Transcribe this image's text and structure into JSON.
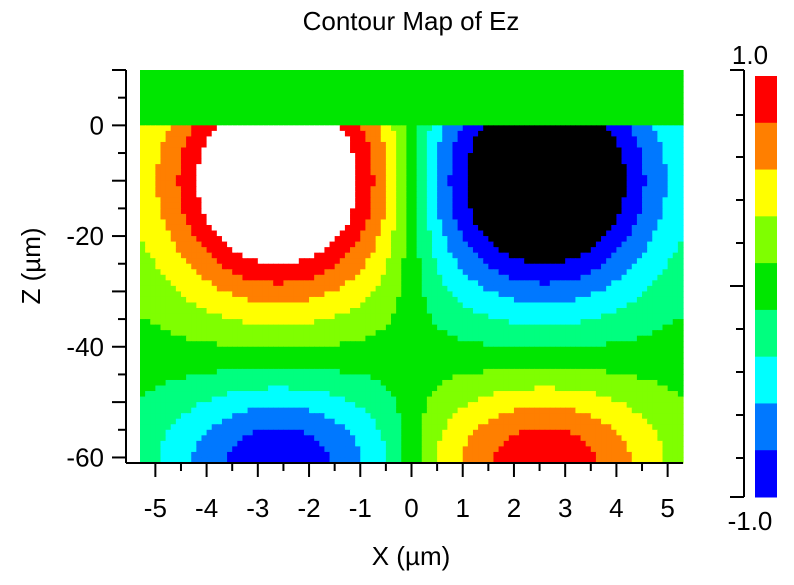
{
  "chart_data": {
    "type": "heatmap",
    "title": "Contour Map of Ez",
    "xlabel": "X (µm)",
    "ylabel": "Z (µm)",
    "xlim": [
      -5.3,
      5.3
    ],
    "ylim": [
      -61,
      10
    ],
    "x_ticks": [
      -5,
      -4,
      -3,
      -2,
      -1,
      0,
      1,
      2,
      3,
      4,
      5
    ],
    "y_ticks": [
      0,
      -20,
      -40,
      -60
    ],
    "colorbar": {
      "max_label": "1.0",
      "min_label": "-1.0",
      "range": [
        -1.0,
        1.0
      ],
      "levels": 9,
      "colors": [
        "#0000ff",
        "#0078ff",
        "#00ffff",
        "#00ff7f",
        "#00e600",
        "#7fff00",
        "#ffff00",
        "#ff7f00",
        "#ff0000"
      ]
    },
    "field_model": {
      "description_of_pattern": "two-lobe antisymmetric field in x, positive upper-left / negative upper-right, sign reversed below z = -36",
      "x_center_um": 2.6,
      "x_width_um": 2.3,
      "upper_lobe_center_z": -10,
      "upper_lobe_width_z": 22,
      "upper_lobe_amplitude": 1.6,
      "lower_lobe_center_z": -61,
      "lower_lobe_width_z": 15,
      "lower_lobe_amplitude": 0.95,
      "saturated_high_color": "#ffffff",
      "saturated_low_color": "#000000",
      "cladding_region_z": [
        0,
        10
      ],
      "cladding_value": 0.0
    }
  }
}
